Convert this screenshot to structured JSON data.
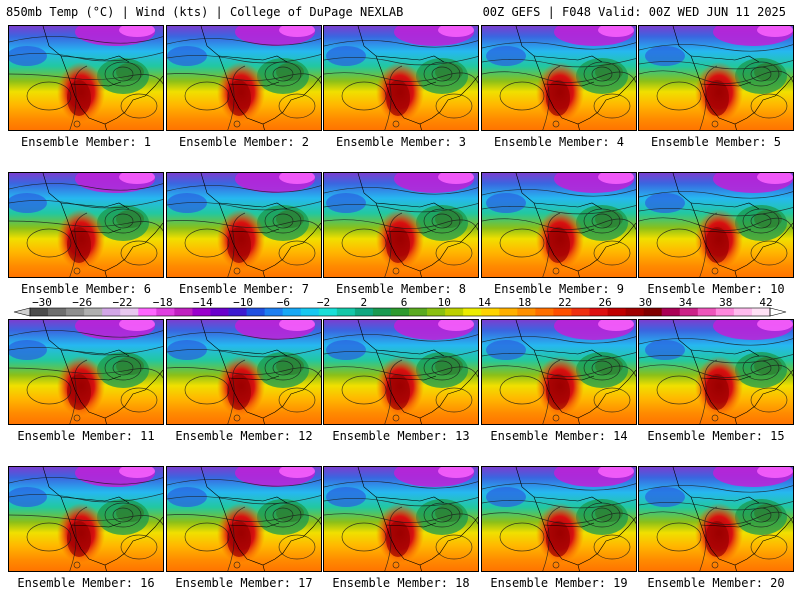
{
  "header": {
    "left": "850mb Temp (°C) | Wind (kts) | College of DuPage NEXLAB",
    "right": "00Z GEFS | F048 Valid: 00Z WED JUN 11 2025"
  },
  "members": [
    {
      "label": "Ensemble Member: 1"
    },
    {
      "label": "Ensemble Member: 2"
    },
    {
      "label": "Ensemble Member: 3"
    },
    {
      "label": "Ensemble Member: 4"
    },
    {
      "label": "Ensemble Member: 5"
    },
    {
      "label": "Ensemble Member: 6"
    },
    {
      "label": "Ensemble Member: 7"
    },
    {
      "label": "Ensemble Member: 8"
    },
    {
      "label": "Ensemble Member: 9"
    },
    {
      "label": "Ensemble Member: 10"
    },
    {
      "label": "Ensemble Member: 11"
    },
    {
      "label": "Ensemble Member: 12"
    },
    {
      "label": "Ensemble Member: 13"
    },
    {
      "label": "Ensemble Member: 14"
    },
    {
      "label": "Ensemble Member: 15"
    },
    {
      "label": "Ensemble Member: 16"
    },
    {
      "label": "Ensemble Member: 17"
    },
    {
      "label": "Ensemble Member: 18"
    },
    {
      "label": "Ensemble Member: 19"
    },
    {
      "label": "Ensemble Member: 20"
    }
  ],
  "colorbar": {
    "ticks": [
      "−30",
      "−26",
      "−22",
      "−18",
      "−14",
      "−10",
      "−6",
      "−2",
      "2",
      "6",
      "10",
      "14",
      "18",
      "22",
      "26",
      "30",
      "34",
      "38",
      "42"
    ],
    "colors": [
      "#4d4d4d",
      "#6f6f6f",
      "#8f8f8f",
      "#b0b0b0",
      "#d2a6e6",
      "#e8c8f0",
      "#ff66ff",
      "#e040e0",
      "#c020c0",
      "#9a00cc",
      "#6a00cc",
      "#3d1bd0",
      "#2050e0",
      "#1e7ff0",
      "#18a8f5",
      "#17c8f0",
      "#18e0d8",
      "#14c8a8",
      "#10a880",
      "#1a9a50",
      "#2e9a2e",
      "#5aaa20",
      "#8ac010",
      "#bcd000",
      "#ecec00",
      "#ffd400",
      "#ffb000",
      "#ff9000",
      "#ff7000",
      "#ff5000",
      "#ee3010",
      "#dd1010",
      "#c00000",
      "#a00000",
      "#800000",
      "#aa0055",
      "#cc2288",
      "#ee55bb",
      "#ff88dd",
      "#ffbbee",
      "#ffe0f5"
    ]
  }
}
